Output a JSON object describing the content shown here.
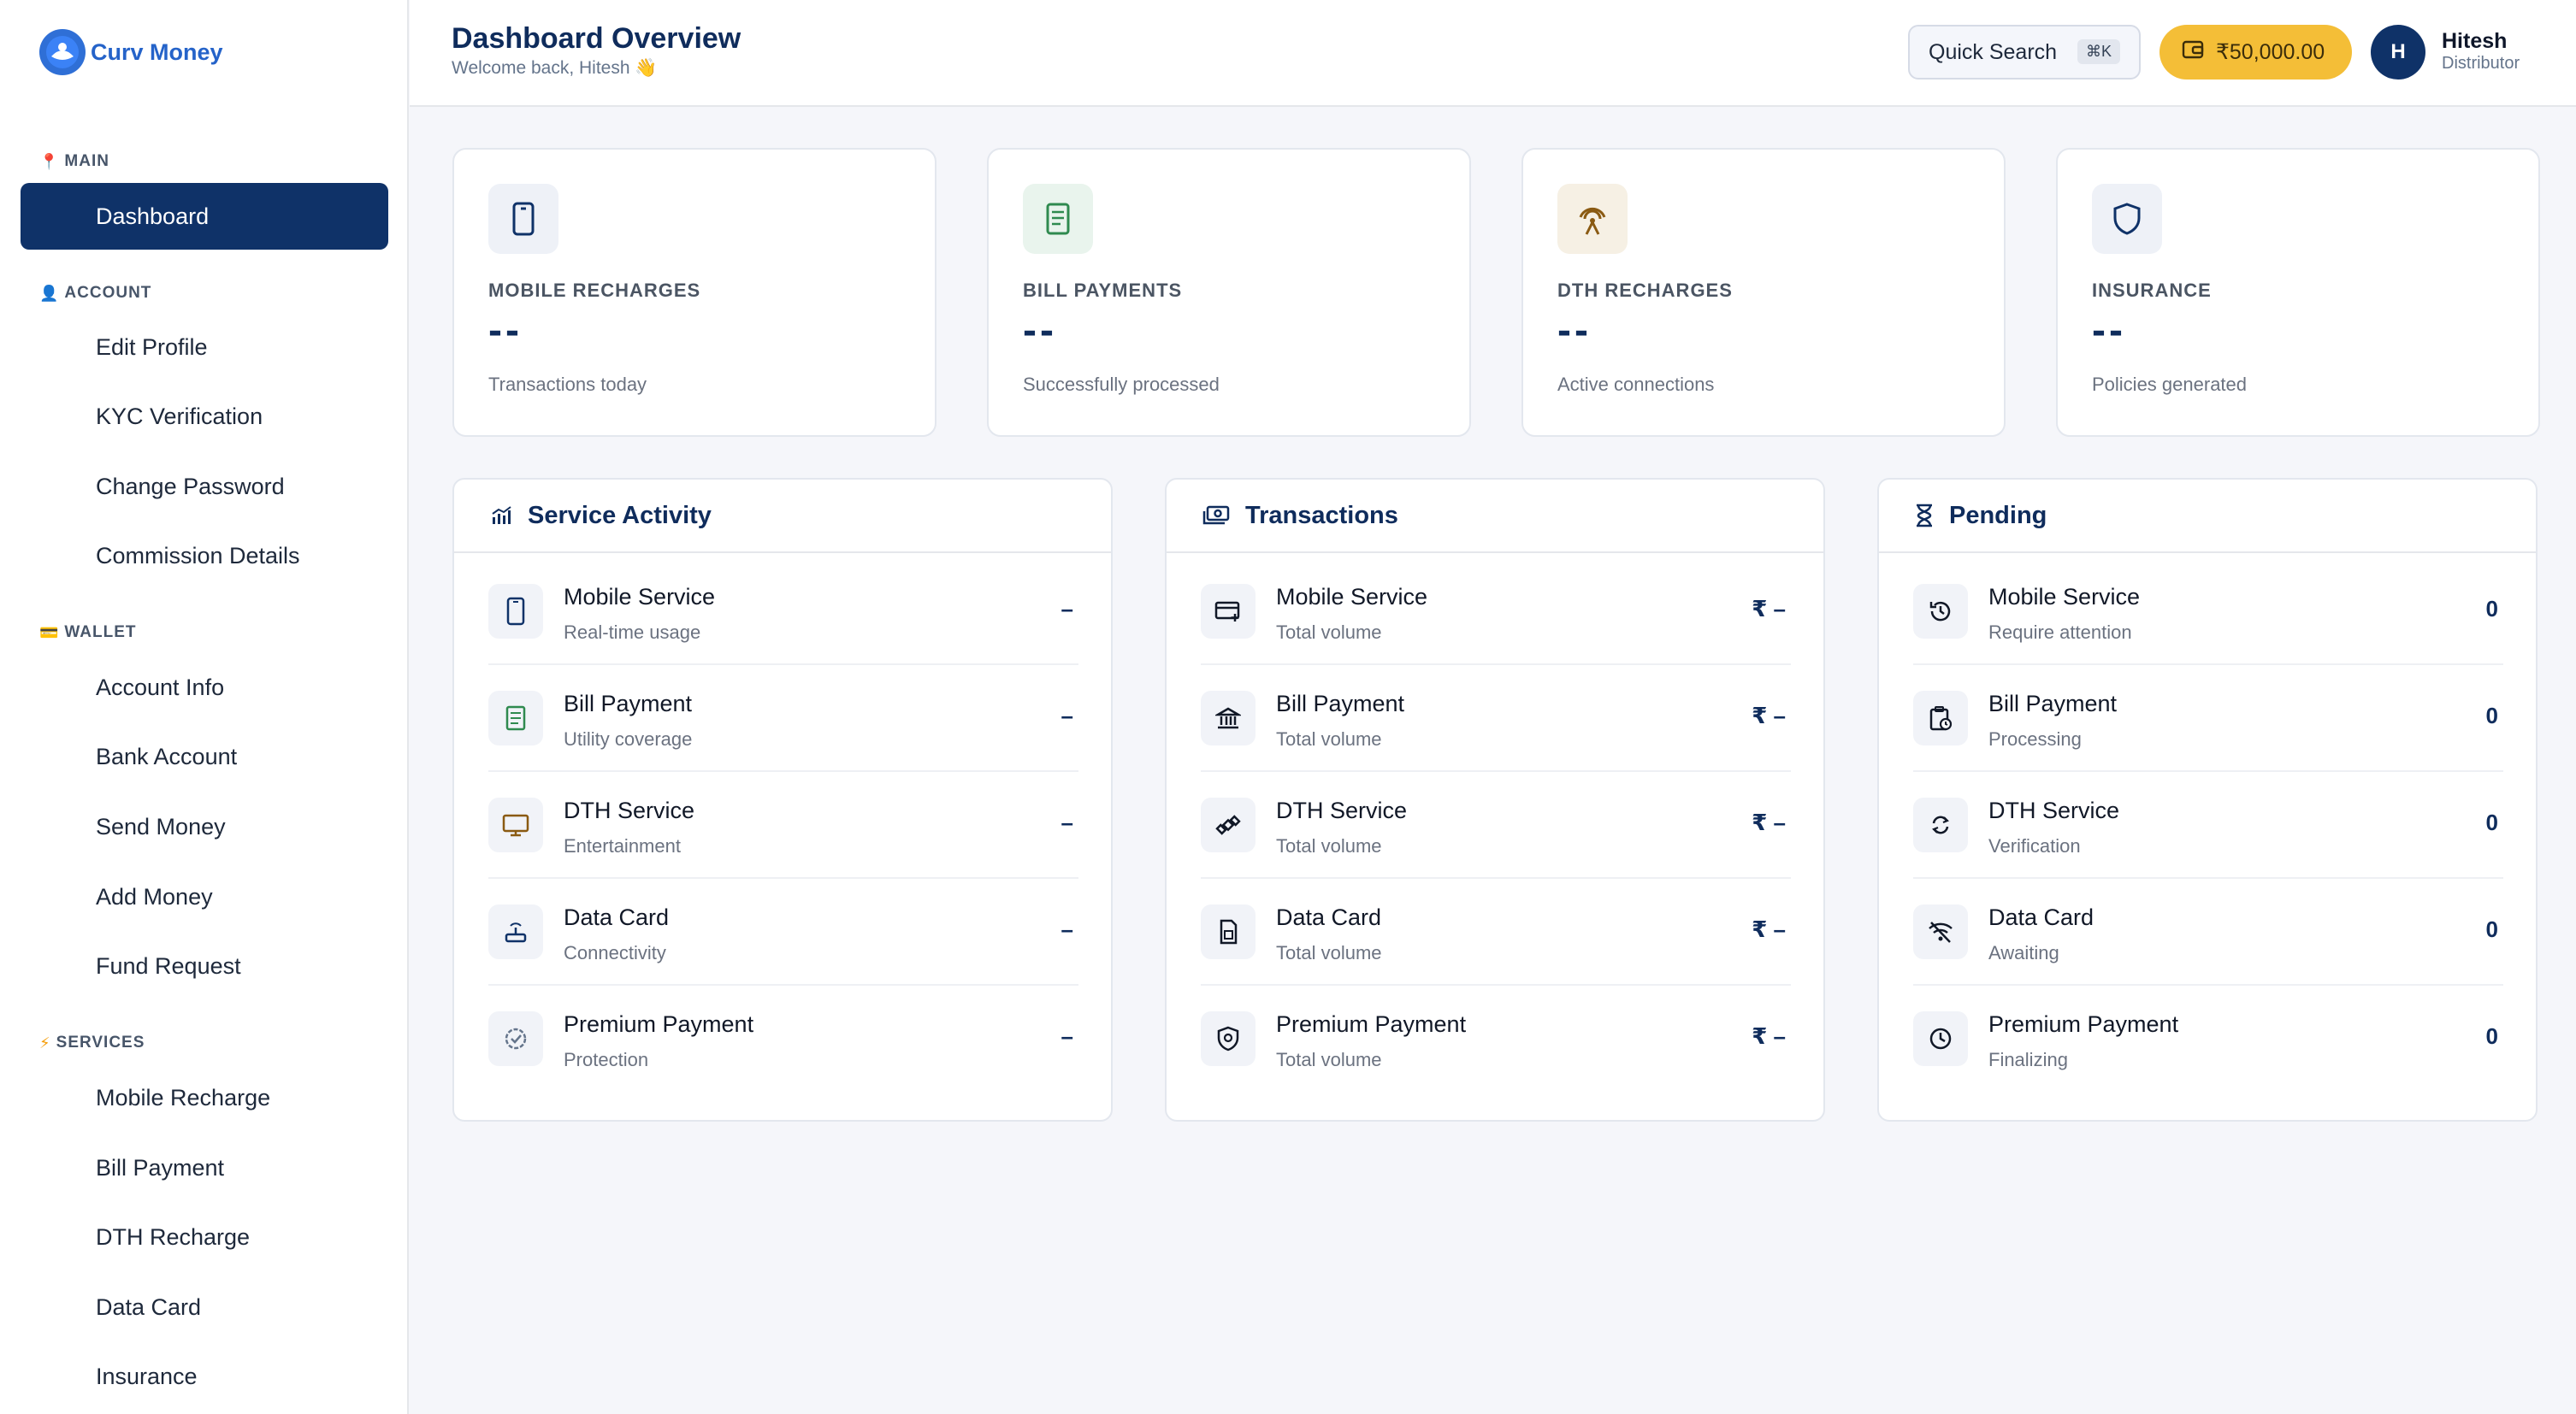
{
  "brand": {
    "name": "Curv Money"
  },
  "sidebar": {
    "sections": [
      {
        "label": "MAIN",
        "icon": "pin-icon"
      },
      {
        "label": "ACCOUNT",
        "icon": "user-icon"
      },
      {
        "label": "WALLET",
        "icon": "card-icon"
      },
      {
        "label": "SERVICES",
        "icon": "bolt-icon"
      }
    ],
    "items": [
      "Dashboard",
      "Edit Profile",
      "KYC Verification",
      "Change Password",
      "Commission Details",
      "Account Info",
      "Bank Account",
      "Send Money",
      "Add Money",
      "Fund Request",
      "Mobile Recharge",
      "Bill Payment",
      "DTH Recharge",
      "Data Card",
      "Insurance"
    ],
    "active_item": "Dashboard"
  },
  "header": {
    "title": "Dashboard Overview",
    "subtitle": "Welcome back, Hitesh 👋",
    "search_label": "Quick Search",
    "search_shortcut": "⌘K",
    "wallet_balance": "₹50,000.00",
    "avatar_initial": "H",
    "user_name": "Hitesh",
    "user_role": "Distributor"
  },
  "stats": [
    {
      "label": "MOBILE RECHARGES",
      "value": "--",
      "caption": "Transactions today",
      "icon": "phone-icon",
      "accent": "#0f3268",
      "bg": "#eef1f7"
    },
    {
      "label": "BILL PAYMENTS",
      "value": "--",
      "caption": "Successfully processed",
      "icon": "receipt-icon",
      "accent": "#2f8a4f",
      "bg": "#e9f4ed"
    },
    {
      "label": "DTH RECHARGES",
      "value": "--",
      "caption": "Active connections",
      "icon": "antenna-icon",
      "accent": "#8a5a12",
      "bg": "#f6f0e4"
    },
    {
      "label": "INSURANCE",
      "value": "--",
      "caption": "Policies generated",
      "icon": "shield-icon",
      "accent": "#0f3268",
      "bg": "#eef1f7"
    }
  ],
  "panels": [
    {
      "title": "Service Activity",
      "icon": "chart-icon",
      "rows": [
        {
          "title": "Mobile Service",
          "sub": "Real-time usage",
          "value": "–",
          "icon": "phone-icon"
        },
        {
          "title": "Bill Payment",
          "sub": "Utility coverage",
          "value": "–",
          "icon": "receipt-icon"
        },
        {
          "title": "DTH Service",
          "sub": "Entertainment",
          "value": "–",
          "icon": "tv-icon"
        },
        {
          "title": "Data Card",
          "sub": "Connectivity",
          "value": "–",
          "icon": "router-icon"
        },
        {
          "title": "Premium Payment",
          "sub": "Protection",
          "value": "–",
          "icon": "verified-icon"
        }
      ]
    },
    {
      "title": "Transactions",
      "icon": "cash-icon",
      "rows": [
        {
          "title": "Mobile Service",
          "sub": "Total volume",
          "value": "₹ –",
          "icon": "card-add-icon"
        },
        {
          "title": "Bill Payment",
          "sub": "Total volume",
          "value": "₹ –",
          "icon": "bank-icon"
        },
        {
          "title": "DTH Service",
          "sub": "Total volume",
          "value": "₹ –",
          "icon": "satellite-icon"
        },
        {
          "title": "Data Card",
          "sub": "Total volume",
          "value": "₹ –",
          "icon": "sim-icon"
        },
        {
          "title": "Premium Payment",
          "sub": "Total volume",
          "value": "₹ –",
          "icon": "shield-at-icon"
        }
      ]
    },
    {
      "title": "Pending",
      "icon": "hourglass-icon",
      "rows": [
        {
          "title": "Mobile Service",
          "sub": "Require attention",
          "value": "0",
          "icon": "history-icon"
        },
        {
          "title": "Bill Payment",
          "sub": "Processing",
          "value": "0",
          "icon": "clipboard-clock-icon"
        },
        {
          "title": "DTH Service",
          "sub": "Verification",
          "value": "0",
          "icon": "sync-icon"
        },
        {
          "title": "Data Card",
          "sub": "Awaiting",
          "value": "0",
          "icon": "wifi-off-icon"
        },
        {
          "title": "Premium Payment",
          "sub": "Finalizing",
          "value": "0",
          "icon": "clock-icon"
        }
      ]
    }
  ]
}
